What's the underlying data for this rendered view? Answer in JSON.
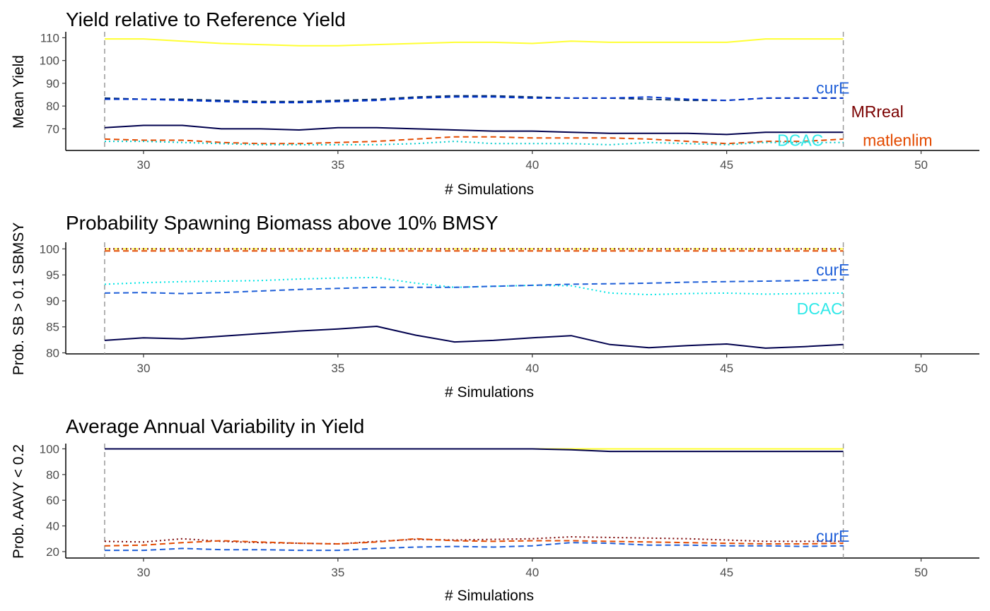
{
  "chart_data": [
    {
      "type": "line",
      "title": "Yield relative to Reference Yield",
      "xlabel": "# Simulations",
      "ylabel": "Mean Yield",
      "xlim": [
        28,
        51.5
      ],
      "ylim": [
        60.5,
        112
      ],
      "xticks": [
        30,
        35,
        40,
        45,
        50
      ],
      "yticks": [
        70,
        80,
        90,
        100,
        110
      ],
      "grid": false,
      "vlines": [
        29,
        48
      ],
      "x": [
        29,
        30,
        31,
        32,
        33,
        34,
        35,
        36,
        37,
        38,
        39,
        40,
        41,
        42,
        43,
        44,
        45,
        46,
        47,
        48
      ],
      "series": [
        {
          "color": "#ffff33",
          "values": [
            109.5,
            109.5,
            108.5,
            107.5,
            107,
            106.5,
            106.5,
            107,
            107.5,
            108,
            108,
            107.5,
            108.5,
            108,
            108,
            108,
            108,
            109.5,
            109.5,
            109.5
          ]
        },
        {
          "color": "#08306b",
          "values": [
            83.5,
            83,
            83,
            82.5,
            82,
            82,
            82.5,
            83,
            84,
            84.5,
            84.5,
            84,
            83.5,
            83.5,
            83,
            82.5,
            82.5,
            83.5,
            83.5,
            83.5
          ]
        },
        {
          "color": "#0033cc",
          "values": [
            83,
            83,
            82.5,
            82,
            81.5,
            81.5,
            82,
            82.5,
            83.5,
            84,
            84,
            83.5,
            83.5,
            83.5,
            84,
            83,
            82.5,
            83.5,
            83.5,
            83.5
          ]
        },
        {
          "color": "#00004d",
          "values": [
            70.5,
            71.5,
            71.5,
            70,
            70,
            69.5,
            70.5,
            70.5,
            70,
            69.5,
            69,
            69,
            68.5,
            68,
            68,
            68,
            67.5,
            68.5,
            68.5,
            68.5
          ]
        },
        {
          "color": "#e34a00",
          "values": [
            65.5,
            65,
            65,
            64,
            63.5,
            63.5,
            64,
            64.5,
            65.5,
            66.5,
            66.5,
            66,
            66,
            66,
            65.5,
            64.5,
            63.5,
            64.5,
            64.5,
            65.5
          ]
        },
        {
          "color": "#00cccc",
          "values": [
            64.5,
            64.5,
            64,
            63.5,
            63,
            63,
            63,
            63,
            63.5,
            64.5,
            63.5,
            63.5,
            63.5,
            63,
            64,
            63.5,
            63,
            64,
            64,
            64
          ]
        }
      ],
      "annotations": [
        {
          "text": "curE",
          "color": "#1f5fd8",
          "x": 47.3,
          "y": 88
        },
        {
          "text": "MRreal",
          "color": "#7a0000",
          "x": 48.2,
          "y": 77.5
        },
        {
          "text": "DCAC",
          "color": "#2ee8e8",
          "x": 46.3,
          "y": 65
        },
        {
          "text": "matlenlim",
          "color": "#e34a00",
          "x": 48.5,
          "y": 65
        }
      ]
    },
    {
      "type": "line",
      "title": "Probability Spawning Biomass above 10% BMSY",
      "xlabel": "# Simulations",
      "ylabel": "Prob. SB > 0.1 SBMSY",
      "xlim": [
        28,
        51.5
      ],
      "ylim": [
        79.8,
        101
      ],
      "xticks": [
        30,
        35,
        40,
        45,
        50
      ],
      "yticks": [
        80,
        85,
        90,
        95,
        100
      ],
      "grid": false,
      "vlines": [
        29,
        48
      ],
      "x": [
        29,
        30,
        31,
        32,
        33,
        34,
        35,
        36,
        37,
        38,
        39,
        40,
        41,
        42,
        43,
        44,
        45,
        46,
        47,
        48
      ],
      "series": [
        {
          "color": "#ffff33",
          "values": [
            100,
            100,
            100,
            100,
            100,
            100,
            100,
            100,
            100,
            100,
            100,
            100,
            100,
            100,
            100,
            100,
            100,
            100,
            100,
            100
          ]
        },
        {
          "color": "#7a0000",
          "values": [
            100,
            100,
            100,
            100,
            100,
            100,
            100,
            100,
            100,
            100,
            100,
            100,
            100,
            100,
            100,
            100,
            100,
            100,
            100,
            100
          ]
        },
        {
          "color": "#e34a00",
          "values": [
            99.6,
            99.6,
            99.6,
            99.6,
            99.6,
            99.6,
            99.6,
            99.6,
            99.6,
            99.6,
            99.6,
            99.6,
            99.6,
            99.6,
            99.6,
            99.6,
            99.6,
            99.6,
            99.6,
            99.6
          ]
        },
        {
          "color": "#00e5e5",
          "values": [
            93.2,
            93.5,
            93.7,
            93.8,
            93.9,
            94.2,
            94.4,
            94.5,
            93.4,
            92.6,
            92.8,
            93,
            92.9,
            91.5,
            91.2,
            91.4,
            91.5,
            91.3,
            91.4,
            91.5
          ]
        },
        {
          "color": "#1f5fd8",
          "values": [
            91.5,
            91.6,
            91.4,
            91.6,
            91.9,
            92.2,
            92.4,
            92.6,
            92.6,
            92.6,
            92.8,
            93,
            93.2,
            93.3,
            93.4,
            93.6,
            93.7,
            93.8,
            93.9,
            94.1
          ]
        },
        {
          "color": "#00004d",
          "values": [
            82.4,
            82.9,
            82.7,
            83.2,
            83.7,
            84.2,
            84.6,
            85.1,
            83.4,
            82.1,
            82.4,
            82.9,
            83.3,
            81.6,
            81,
            81.4,
            81.7,
            80.9,
            81.2,
            81.6
          ]
        }
      ],
      "annotations": [
        {
          "text": "curE",
          "color": "#1f5fd8",
          "x": 47.3,
          "y": 96
        },
        {
          "text": "DCAC",
          "color": "#2ee8e8",
          "x": 46.8,
          "y": 88.5
        }
      ]
    },
    {
      "type": "line",
      "title": "Average Annual Variability in Yield",
      "xlabel": "# Simulations",
      "ylabel": "Prob. AAVY < 0.2",
      "xlim": [
        28,
        51.5
      ],
      "ylim": [
        15,
        103
      ],
      "xticks": [
        30,
        35,
        40,
        45,
        50
      ],
      "yticks": [
        20,
        40,
        60,
        80,
        100
      ],
      "grid": false,
      "vlines": [
        29,
        48
      ],
      "x": [
        29,
        30,
        31,
        32,
        33,
        34,
        35,
        36,
        37,
        38,
        39,
        40,
        41,
        42,
        43,
        44,
        45,
        46,
        47,
        48
      ],
      "series": [
        {
          "color": "#ffff33",
          "values": [
            100,
            100,
            100,
            100,
            100,
            100,
            100,
            100,
            100,
            100,
            100,
            100,
            100,
            100,
            100,
            100,
            100,
            100,
            100,
            100
          ]
        },
        {
          "color": "#00004d",
          "values": [
            100,
            100,
            100,
            100,
            100,
            100,
            100,
            100,
            100,
            100,
            100,
            100,
            99.3,
            98,
            98,
            98,
            98,
            98,
            98,
            98
          ]
        },
        {
          "color": "#7a0000",
          "values": [
            28,
            27.5,
            30,
            28,
            27,
            26.5,
            26,
            28,
            29.5,
            29,
            29.5,
            30,
            31.5,
            31,
            30.5,
            30,
            29,
            28,
            28,
            28
          ]
        },
        {
          "color": "#e34a00",
          "values": [
            24.5,
            25,
            27,
            28.5,
            27.5,
            26.5,
            26,
            27.5,
            30,
            28.5,
            28,
            28.5,
            28.5,
            28,
            27.5,
            27,
            26.5,
            26,
            26,
            26.5
          ]
        },
        {
          "color": "#1f5fd8",
          "values": [
            21,
            21,
            22.5,
            21.5,
            21.5,
            21,
            21,
            22.5,
            23.5,
            24,
            23.5,
            24.5,
            27,
            26.5,
            25,
            25,
            24.5,
            24.5,
            24,
            24.5
          ]
        }
      ],
      "annotations": [
        {
          "text": "curE",
          "color": "#1f5fd8",
          "x": 47.3,
          "y": 32
        }
      ]
    }
  ]
}
